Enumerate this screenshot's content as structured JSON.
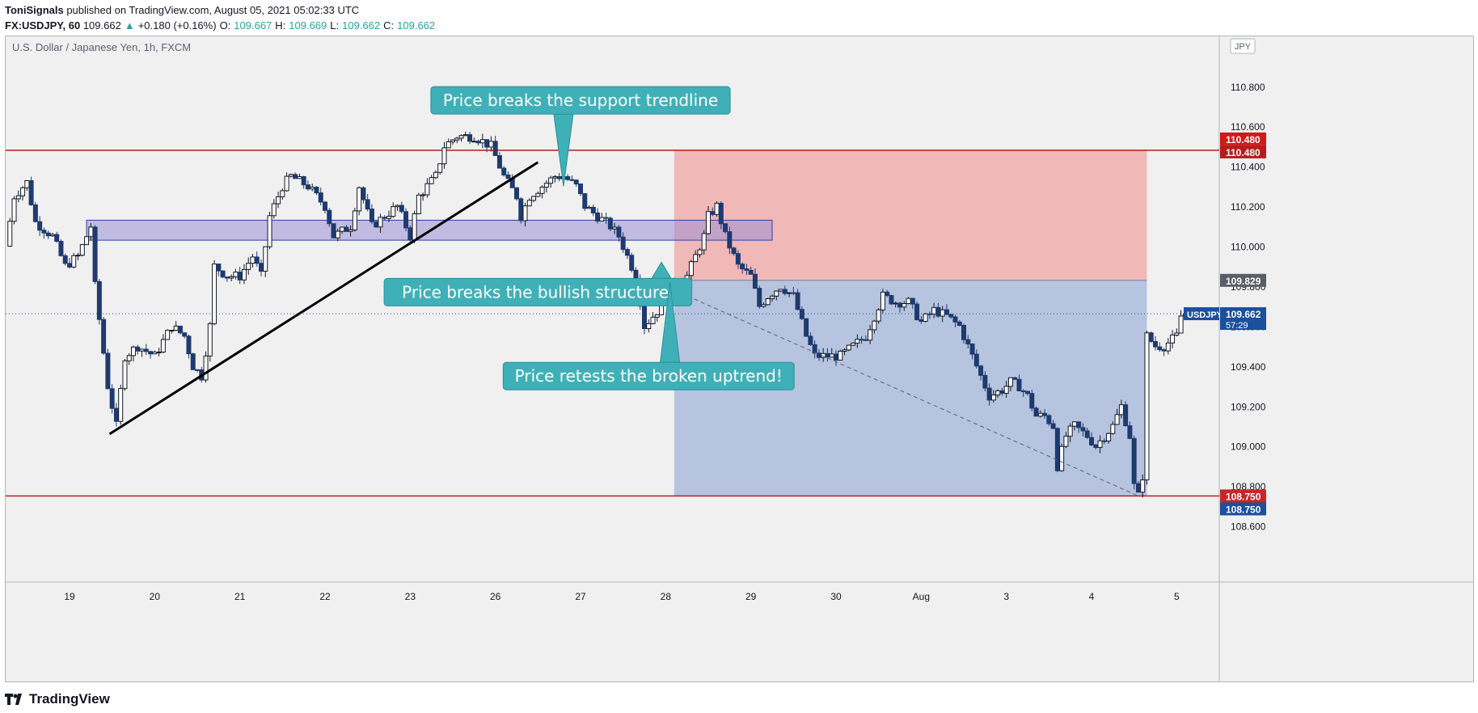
{
  "header": {
    "publisher": "ToniSignals",
    "published_text": " published on TradingView.com, August 05, 2021 05:02:33 UTC",
    "symbol": "FX:USDJPY, 60",
    "last": "109.662",
    "change": "+0.180 (+0.16%)",
    "o_label": "O:",
    "o_value": "109.667",
    "h_label": "H:",
    "h_value": "109.669",
    "l_label": "L:",
    "l_value": "109.662",
    "c_label": "C:",
    "c_value": "109.662",
    "up_color": "#26a69a"
  },
  "footer": {
    "logo_text": "TradingView"
  },
  "chart_data": {
    "type": "candlestick",
    "title": "U.S. Dollar / Japanese Yen, 1h, FXCM",
    "currency_badge": "JPY",
    "y_ticks": [
      "110.800",
      "110.600",
      "110.400",
      "110.200",
      "110.000",
      "109.800",
      "109.600",
      "109.400",
      "109.200",
      "109.000",
      "108.800",
      "108.600"
    ],
    "y_tick_values": [
      110.8,
      110.6,
      110.4,
      110.2,
      110.0,
      109.8,
      109.6,
      109.4,
      109.2,
      109.0,
      108.8,
      108.6
    ],
    "ylim": [
      108.4,
      111.05
    ],
    "x_ticks": [
      "19",
      "20",
      "21",
      "22",
      "23",
      "26",
      "27",
      "28",
      "29",
      "30",
      "Aug",
      "3",
      "4",
      "5"
    ],
    "x_tick_index": [
      0,
      1,
      2,
      3,
      4,
      5,
      6,
      7,
      8,
      9,
      10,
      11,
      12,
      13
    ],
    "x_range": [
      -0.75,
      13.5
    ],
    "candle_path": [
      [
        -0.75,
        110.0
      ],
      [
        -0.65,
        110.25
      ],
      [
        -0.5,
        110.32
      ],
      [
        -0.4,
        110.12
      ],
      [
        -0.2,
        110.05
      ],
      [
        -0.05,
        109.9
      ],
      [
        0.1,
        109.95
      ],
      [
        0.25,
        110.1
      ],
      [
        0.3,
        109.8
      ],
      [
        0.45,
        109.3
      ],
      [
        0.55,
        109.1
      ],
      [
        0.65,
        109.45
      ],
      [
        0.8,
        109.5
      ],
      [
        1.0,
        109.45
      ],
      [
        1.2,
        109.6
      ],
      [
        1.35,
        109.55
      ],
      [
        1.45,
        109.4
      ],
      [
        1.55,
        109.35
      ],
      [
        1.65,
        109.6
      ],
      [
        1.7,
        109.9
      ],
      [
        1.85,
        109.85
      ],
      [
        2.0,
        109.85
      ],
      [
        2.15,
        109.95
      ],
      [
        2.25,
        109.85
      ],
      [
        2.35,
        110.15
      ],
      [
        2.5,
        110.3
      ],
      [
        2.6,
        110.35
      ],
      [
        2.8,
        110.3
      ],
      [
        3.0,
        110.2
      ],
      [
        3.1,
        110.05
      ],
      [
        3.3,
        110.1
      ],
      [
        3.4,
        110.3
      ],
      [
        3.55,
        110.1
      ],
      [
        3.7,
        110.15
      ],
      [
        3.85,
        110.2
      ],
      [
        4.0,
        110.05
      ],
      [
        4.1,
        110.25
      ],
      [
        4.3,
        110.35
      ],
      [
        4.4,
        110.5
      ],
      [
        4.55,
        110.55
      ],
      [
        4.75,
        110.55
      ],
      [
        4.95,
        110.5
      ],
      [
        5.1,
        110.35
      ],
      [
        5.25,
        110.25
      ],
      [
        5.3,
        110.15
      ],
      [
        5.4,
        110.25
      ],
      [
        5.55,
        110.3
      ],
      [
        5.7,
        110.35
      ],
      [
        5.8,
        110.35
      ],
      [
        5.95,
        110.3
      ],
      [
        6.05,
        110.2
      ],
      [
        6.2,
        110.15
      ],
      [
        6.35,
        110.1
      ],
      [
        6.45,
        110.05
      ],
      [
        6.55,
        109.95
      ],
      [
        6.65,
        109.85
      ],
      [
        6.75,
        109.6
      ],
      [
        6.85,
        109.65
      ],
      [
        6.95,
        109.7
      ],
      [
        7.05,
        109.8
      ],
      [
        7.15,
        109.75
      ],
      [
        7.3,
        109.9
      ],
      [
        7.45,
        110.05
      ],
      [
        7.5,
        110.15
      ],
      [
        7.6,
        110.2
      ],
      [
        7.7,
        110.05
      ],
      [
        7.85,
        109.9
      ],
      [
        8.0,
        109.85
      ],
      [
        8.1,
        109.7
      ],
      [
        8.2,
        109.75
      ],
      [
        8.35,
        109.8
      ],
      [
        8.5,
        109.75
      ],
      [
        8.65,
        109.55
      ],
      [
        8.75,
        109.45
      ],
      [
        8.85,
        109.45
      ],
      [
        8.95,
        109.45
      ],
      [
        9.05,
        109.45
      ],
      [
        9.2,
        109.5
      ],
      [
        9.35,
        109.55
      ],
      [
        9.45,
        109.65
      ],
      [
        9.55,
        109.75
      ],
      [
        9.7,
        109.72
      ],
      [
        9.85,
        109.72
      ],
      [
        10.0,
        109.62
      ],
      [
        10.15,
        109.68
      ],
      [
        10.3,
        109.65
      ],
      [
        10.45,
        109.6
      ],
      [
        10.6,
        109.45
      ],
      [
        10.7,
        109.35
      ],
      [
        10.8,
        109.25
      ],
      [
        10.95,
        109.28
      ],
      [
        11.05,
        109.32
      ],
      [
        11.15,
        109.3
      ],
      [
        11.25,
        109.25
      ],
      [
        11.35,
        109.15
      ],
      [
        11.45,
        109.15
      ],
      [
        11.55,
        109.1
      ],
      [
        11.6,
        108.9
      ],
      [
        11.7,
        109.05
      ],
      [
        11.8,
        109.1
      ],
      [
        11.95,
        109.05
      ],
      [
        12.05,
        109.0
      ],
      [
        12.15,
        109.05
      ],
      [
        12.25,
        109.1
      ],
      [
        12.35,
        109.2
      ],
      [
        12.45,
        109.05
      ],
      [
        12.5,
        108.8
      ],
      [
        12.55,
        108.75
      ],
      [
        12.6,
        108.85
      ],
      [
        12.65,
        109.55
      ],
      [
        12.75,
        109.5
      ],
      [
        12.85,
        109.5
      ],
      [
        13.0,
        109.55
      ],
      [
        13.05,
        109.65
      ],
      [
        13.1,
        109.66
      ]
    ],
    "lines": {
      "resistance": 110.48,
      "support": 108.75,
      "entry": 109.829,
      "last_price": 109.662
    },
    "zones": {
      "structure_box": {
        "x0": 0.2,
        "x1": 8.25,
        "y0": 110.03,
        "y1": 110.13
      },
      "stop_zone": {
        "x0": 7.1,
        "x1": 12.65,
        "y0": 109.829,
        "y1": 110.48
      },
      "target_zone": {
        "x0": 7.1,
        "x1": 12.65,
        "y0": 108.75,
        "y1": 109.829
      }
    },
    "trendline": {
      "x0": 0.47,
      "y0": 109.06,
      "x1": 5.5,
      "y1": 110.42
    },
    "projection": {
      "x0": 7.1,
      "y0": 109.78,
      "x1": 12.55,
      "y1": 108.75
    },
    "price_labels": {
      "resistance_a": "110.480",
      "resistance_b": "110.480",
      "entry": "109.829",
      "last_symbol": "USDJPY",
      "last_value": "109.662",
      "countdown": "57:29",
      "support_a": "108.750",
      "support_b": "108.750"
    },
    "annotations": [
      {
        "text": "Price breaks the support trendline",
        "x": 6.0,
        "y": 110.73,
        "tip_x": 5.8,
        "tip_y": 110.3
      },
      {
        "text": "Price breaks the bullish structure.",
        "x": 5.5,
        "y": 109.77,
        "tip_x": 6.95,
        "tip_y": 109.92
      },
      {
        "text": "Price retests the broken uptrend!",
        "x": 6.8,
        "y": 109.35,
        "tip_x": 7.05,
        "tip_y": 109.82
      }
    ],
    "colors": {
      "up": "#131722",
      "down": "#1e3a6e",
      "resistance": "#b71c1c",
      "support": "#b71c1c",
      "stop_fill": "#f28b8b",
      "target_fill": "#8fa6d6",
      "structure_fill": "#9c8fd6",
      "annotation_bg": "#40b0b8",
      "last_label": "#1c4f9c"
    }
  }
}
